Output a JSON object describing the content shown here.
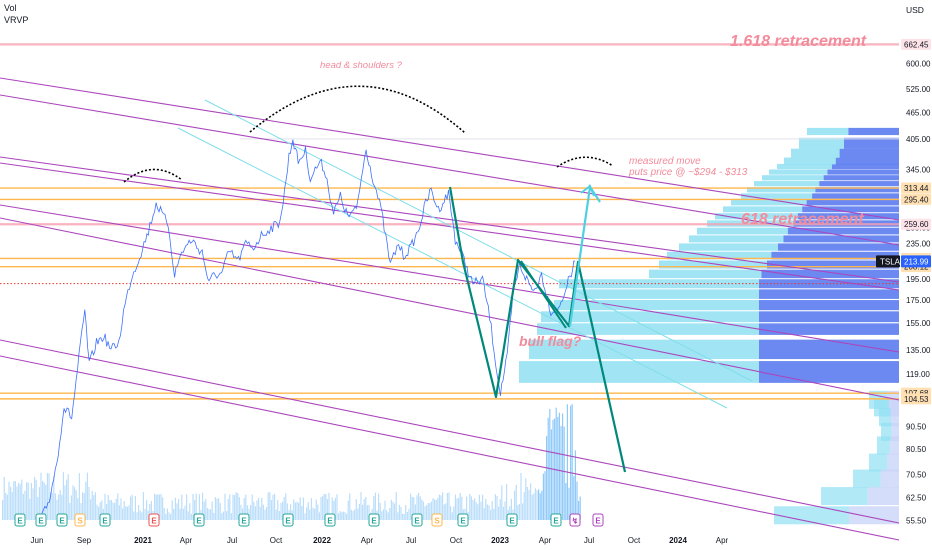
{
  "header": {
    "vol_label": "Vol",
    "vrvp_label": "VRVP"
  },
  "currency": "USD",
  "colors": {
    "candle_line": "#2962ff",
    "volume": "#bbdefb",
    "volume_recent": "#90caf9",
    "fib_level": "#f7a1b0",
    "fib_label": "#f28b9b",
    "orange_level": "#ffb74d",
    "trend_purple": "#ab47bc",
    "trend_light": "#80deea",
    "pattern_green": "#00897b",
    "projection_cyan": "#4dd0e1",
    "dotted_red": "#e53935",
    "vp_dark": "#5b7cf0",
    "vp_light": "#90e0f3",
    "ticker_bg": "#131722",
    "price_tag_blue": "#2962ff",
    "earnings_green": "#26a69a",
    "earnings_red": "#ef5350"
  },
  "annotations": {
    "fib_1618": "1.618 retracement",
    "fib_618": "618 retracement",
    "head_shoulders": "head & shoulders ?",
    "measured_move_1": "measured move",
    "measured_move_2": "puts price @ ~$294 - $313",
    "bull_flag": "bull flag?"
  },
  "price_tags": {
    "ticker": "TSLA",
    "last_price": "213.99",
    "levels": [
      {
        "value": "662.45",
        "kind": "fib"
      },
      {
        "value": "313.44",
        "kind": "orange"
      },
      {
        "value": "295.40",
        "kind": "orange"
      },
      {
        "value": "259.60",
        "kind": "fib"
      },
      {
        "value": "217.25",
        "kind": "orange"
      },
      {
        "value": "208.12",
        "kind": "orange"
      },
      {
        "value": "107.68",
        "kind": "orange"
      },
      {
        "value": "104.53",
        "kind": "orange"
      }
    ]
  },
  "chart_data": {
    "type": "line",
    "ticker": "TSLA",
    "y_scale": "log",
    "ylim": [
      52,
      800
    ],
    "y_ticks": [
      "600.00",
      "525.00",
      "465.00",
      "405.00",
      "345.00",
      "295.00",
      "255.00",
      "235.00",
      "195.00",
      "175.00",
      "155.00",
      "135.00",
      "119.00",
      "90.50",
      "80.50",
      "70.50",
      "62.50",
      "55.50"
    ],
    "x_ticks": [
      "Jun",
      "Sep",
      "2021",
      "Apr",
      "Jul",
      "Oct",
      "2022",
      "Apr",
      "Jul",
      "Oct",
      "2023",
      "Apr",
      "Jul",
      "Oct",
      "2024",
      "Apr"
    ],
    "x_range": [
      "2020-05",
      "2024-05"
    ],
    "series": [
      {
        "values": [
          [
            "2020-06-01",
            55
          ],
          [
            "2020-06-20",
            62
          ],
          [
            "2020-07-05",
            75
          ],
          [
            "2020-07-20",
            100
          ],
          [
            "2020-08-05",
            95
          ],
          [
            "2020-08-20",
            130
          ],
          [
            "2020-09-01",
            165
          ],
          [
            "2020-09-10",
            125
          ],
          [
            "2020-09-25",
            140
          ],
          [
            "2020-10-10",
            145
          ],
          [
            "2020-10-25",
            135
          ],
          [
            "2020-11-10",
            140
          ],
          [
            "2020-11-20",
            165
          ],
          [
            "2020-12-05",
            195
          ],
          [
            "2020-12-20",
            215
          ],
          [
            "2021-01-10",
            250
          ],
          [
            "2021-01-26",
            290
          ],
          [
            "2021-02-10",
            270
          ],
          [
            "2021-02-20",
            260
          ],
          [
            "2021-03-05",
            200
          ],
          [
            "2021-03-20",
            225
          ],
          [
            "2021-04-10",
            240
          ],
          [
            "2021-04-20",
            230
          ],
          [
            "2021-05-01",
            225
          ],
          [
            "2021-05-15",
            190
          ],
          [
            "2021-05-25",
            200
          ],
          [
            "2021-06-10",
            200
          ],
          [
            "2021-06-25",
            225
          ],
          [
            "2021-07-15",
            215
          ],
          [
            "2021-07-30",
            235
          ],
          [
            "2021-08-15",
            230
          ],
          [
            "2021-08-31",
            245
          ],
          [
            "2021-09-20",
            255
          ],
          [
            "2021-10-05",
            260
          ],
          [
            "2021-10-15",
            290
          ],
          [
            "2021-10-27",
            370
          ],
          [
            "2021-11-04",
            405
          ],
          [
            "2021-11-15",
            360
          ],
          [
            "2021-11-30",
            380
          ],
          [
            "2021-12-10",
            330
          ],
          [
            "2021-12-30",
            360
          ],
          [
            "2022-01-10",
            340
          ],
          [
            "2022-01-27",
            275
          ],
          [
            "2022-02-10",
            300
          ],
          [
            "2022-02-25",
            270
          ],
          [
            "2022-03-15",
            280
          ],
          [
            "2022-04-04",
            385
          ],
          [
            "2022-04-15",
            340
          ],
          [
            "2022-05-05",
            280
          ],
          [
            "2022-05-24",
            210
          ],
          [
            "2022-06-10",
            235
          ],
          [
            "2022-06-20",
            220
          ],
          [
            "2022-07-05",
            230
          ],
          [
            "2022-07-20",
            250
          ],
          [
            "2022-08-05",
            290
          ],
          [
            "2022-08-16",
            310
          ],
          [
            "2022-08-31",
            280
          ],
          [
            "2022-09-21",
            305
          ],
          [
            "2022-10-05",
            240
          ],
          [
            "2022-10-20",
            220
          ],
          [
            "2022-11-10",
            190
          ],
          [
            "2022-11-30",
            195
          ],
          [
            "2022-12-15",
            160
          ],
          [
            "2022-12-30",
            120
          ],
          [
            "2023-01-06",
            108
          ],
          [
            "2023-01-20",
            130
          ],
          [
            "2023-02-01",
            180
          ],
          [
            "2023-02-15",
            210
          ],
          [
            "2023-03-01",
            195
          ],
          [
            "2023-03-15",
            183
          ],
          [
            "2023-04-01",
            200
          ],
          [
            "2023-04-20",
            165
          ],
          [
            "2023-05-05",
            165
          ],
          [
            "2023-05-20",
            185
          ],
          [
            "2023-06-01",
            200
          ],
          [
            "2023-06-09",
            214
          ]
        ]
      }
    ],
    "levels": [
      {
        "name": "1.618 retracement",
        "value": 662.45
      },
      {
        "name": "618 retracement",
        "value": 259.6
      },
      {
        "value": 313.44
      },
      {
        "value": 295.4
      },
      {
        "value": 217.25
      },
      {
        "value": 208.12
      },
      {
        "value": 107.68
      },
      {
        "value": 104.53
      }
    ],
    "legend": "none"
  }
}
